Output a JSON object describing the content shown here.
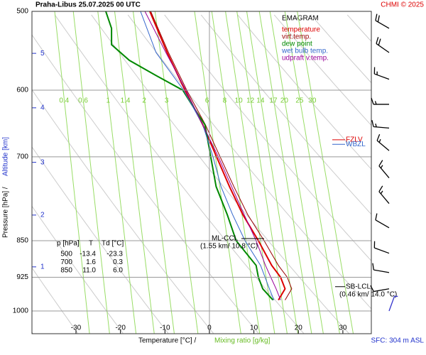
{
  "chart_data": {
    "type": "emagram",
    "title": "Praha-Libus    25.07.2025 00 UTC",
    "credit": "CHMI © 2025",
    "legend_title": "EMAGRAM",
    "y_label": "Pressure [hPa]  /",
    "y2_label": "Altitude [km]",
    "x_label": "Temperature [°C]  /",
    "x2_label": "Mixing ratio [g/kg]",
    "footer": "SFC: 304 m ASL",
    "log_y": true,
    "ylim": [
      1054,
      500
    ],
    "yticks": [
      500,
      600,
      700,
      850,
      925,
      1000
    ],
    "xlim": [
      -39.9,
      36.4
    ],
    "xticks": [
      -30,
      -20,
      -10,
      0,
      10,
      20,
      30
    ],
    "isotherm": 0,
    "altitude_ticks": [
      {
        "label": "1",
        "pressure": 903
      },
      {
        "label": "2",
        "pressure": 801
      },
      {
        "label": "3",
        "pressure": 709
      },
      {
        "label": "4",
        "pressure": 625
      },
      {
        "label": "5",
        "pressure": 551
      }
    ],
    "mixing_ratio_label_pressure": 615,
    "mixing_ratios": [
      0.4,
      0.6,
      1,
      1.4,
      2,
      3,
      6,
      8,
      10,
      12,
      14,
      17,
      20,
      25,
      30
    ],
    "series": [
      {
        "name": "temperature",
        "color": "#dd0000",
        "width": 2,
        "pressure": [
          975,
          950,
          925,
          900,
          850,
          800,
          750,
          700,
          650,
          600,
          550,
          500
        ],
        "values": [
          15.5,
          17,
          16,
          14,
          11,
          7.5,
          4.5,
          1.6,
          -1.5,
          -5.5,
          -9.5,
          -13.4
        ]
      },
      {
        "name": "virt.temp.",
        "color": "#990000",
        "width": 1,
        "pressure": [
          975,
          950,
          925,
          900,
          850,
          800,
          750,
          700,
          650,
          600,
          550,
          500
        ],
        "values": [
          17,
          18.5,
          17.5,
          15.5,
          12.3,
          8.6,
          5.5,
          2.4,
          -0.9,
          -5.1,
          -9.2,
          -13.2
        ]
      },
      {
        "name": "dew point",
        "color": "#008800",
        "width": 2,
        "pressure": [
          975,
          950,
          925,
          900,
          850,
          800,
          750,
          700,
          650,
          620,
          600,
          580,
          560,
          540,
          520,
          500
        ],
        "values": [
          14.3,
          12,
          11,
          10.5,
          6,
          4,
          1.5,
          0.3,
          -1,
          -4,
          -6,
          -12,
          -18,
          -22,
          -22,
          -23.3
        ]
      },
      {
        "name": "wet bulb temp.",
        "color": "#3366cc",
        "width": 1,
        "pressure": [
          975,
          950,
          925,
          900,
          850,
          800,
          750,
          700,
          650,
          600,
          550,
          500
        ],
        "values": [
          14.5,
          13.5,
          12.5,
          11.5,
          8,
          5.2,
          2.6,
          0.8,
          -1.5,
          -5.8,
          -12,
          -15.5
        ]
      },
      {
        "name": "udpraft v.temp.",
        "color": "#990099",
        "width": 1,
        "pressure": [
          975,
          950,
          925,
          900,
          850,
          800,
          750,
          700,
          650,
          600,
          550,
          500
        ],
        "values": [
          16,
          15,
          13.8,
          12.6,
          10.5,
          7.8,
          5,
          2,
          -1.5,
          -5.3,
          -9.8,
          -14.5
        ]
      }
    ],
    "levels": [
      {
        "label": "FZLV",
        "color": "#dd0000",
        "pressure": 673
      },
      {
        "label": "WBZL",
        "color": "#3366cc",
        "pressure": 680
      }
    ],
    "annotations": [
      {
        "label": "ML-CCL",
        "detail": "(1.55 km/ 10.8 °C)",
        "pressure": 850
      },
      {
        "label": "SB-LCL",
        "detail": "(0.46 km/ 14.0 °C)",
        "pressure": 950
      }
    ],
    "table": {
      "header": [
        "p [hPa]",
        "T",
        "Td [°C]"
      ],
      "rows": [
        [
          "500",
          "-13.4",
          "-23.3"
        ],
        [
          "700",
          "1.6",
          "0.3"
        ],
        [
          "850",
          "11.0",
          "6.0"
        ]
      ]
    },
    "wind": [
      {
        "pressure": 520,
        "direction": 300,
        "speed": 20
      },
      {
        "pressure": 550,
        "direction": 305,
        "speed": 20
      },
      {
        "pressure": 585,
        "direction": 290,
        "speed": 15
      },
      {
        "pressure": 620,
        "direction": 270,
        "speed": 15
      },
      {
        "pressure": 655,
        "direction": 275,
        "speed": 15
      },
      {
        "pressure": 690,
        "direction": 310,
        "speed": 15
      },
      {
        "pressure": 735,
        "direction": 320,
        "speed": 15
      },
      {
        "pressure": 780,
        "direction": 320,
        "speed": 15
      },
      {
        "pressure": 825,
        "direction": 300,
        "speed": 10
      },
      {
        "pressure": 875,
        "direction": 290,
        "speed": 10
      },
      {
        "pressure": 915,
        "direction": 280,
        "speed": 10
      },
      {
        "pressure": 950,
        "direction": 260,
        "speed": 10
      },
      {
        "pressure": 1000,
        "direction": 20,
        "speed": 5,
        "color": "#3333cc"
      }
    ]
  }
}
